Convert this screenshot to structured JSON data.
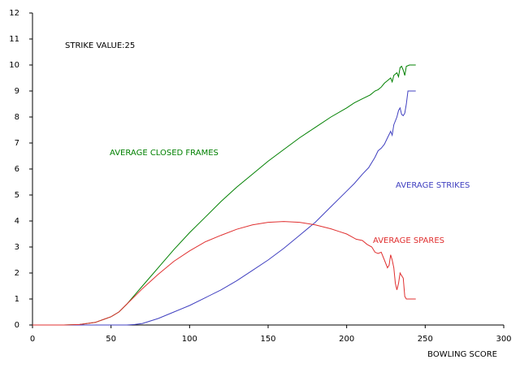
{
  "chart_data": {
    "type": "line",
    "title": "",
    "xlabel": "BOWLING SCORE",
    "ylabel": "",
    "xlim": [
      0,
      300
    ],
    "ylim": [
      0,
      12
    ],
    "x_ticks": [
      0,
      50,
      100,
      150,
      200,
      250,
      300
    ],
    "y_ticks": [
      0,
      1,
      2,
      3,
      4,
      5,
      6,
      7,
      8,
      9,
      10,
      11,
      12
    ],
    "grid": false,
    "annotation": "STRIKE VALUE:25",
    "colors": {
      "axis": "#000000",
      "background": "#ffffff"
    },
    "series": [
      {
        "name": "AVERAGE CLOSED FRAMES",
        "color": "#008000",
        "label_position": "left-middle",
        "points": [
          [
            0,
            0
          ],
          [
            20,
            0
          ],
          [
            30,
            0.02
          ],
          [
            40,
            0.1
          ],
          [
            50,
            0.32
          ],
          [
            55,
            0.5
          ],
          [
            60,
            0.8
          ],
          [
            65,
            1.15
          ],
          [
            70,
            1.5
          ],
          [
            80,
            2.2
          ],
          [
            90,
            2.9
          ],
          [
            100,
            3.55
          ],
          [
            110,
            4.15
          ],
          [
            120,
            4.75
          ],
          [
            130,
            5.3
          ],
          [
            140,
            5.8
          ],
          [
            150,
            6.3
          ],
          [
            160,
            6.75
          ],
          [
            170,
            7.2
          ],
          [
            180,
            7.6
          ],
          [
            190,
            8.0
          ],
          [
            200,
            8.35
          ],
          [
            205,
            8.55
          ],
          [
            210,
            8.7
          ],
          [
            215,
            8.85
          ],
          [
            218,
            9.0
          ],
          [
            220,
            9.05
          ],
          [
            222,
            9.15
          ],
          [
            224,
            9.3
          ],
          [
            226,
            9.4
          ],
          [
            228,
            9.5
          ],
          [
            229,
            9.35
          ],
          [
            230,
            9.6
          ],
          [
            232,
            9.7
          ],
          [
            233,
            9.55
          ],
          [
            234,
            9.9
          ],
          [
            235,
            9.95
          ],
          [
            236,
            9.8
          ],
          [
            237,
            9.6
          ],
          [
            238,
            9.95
          ],
          [
            240,
            10.0
          ],
          [
            244,
            10.0
          ]
        ]
      },
      {
        "name": "AVERAGE STRIKES",
        "color": "#4040c0",
        "label_position": "right-middle",
        "points": [
          [
            0,
            0
          ],
          [
            60,
            0
          ],
          [
            65,
            0.02
          ],
          [
            70,
            0.06
          ],
          [
            80,
            0.25
          ],
          [
            90,
            0.5
          ],
          [
            100,
            0.75
          ],
          [
            110,
            1.05
          ],
          [
            120,
            1.35
          ],
          [
            130,
            1.7
          ],
          [
            140,
            2.1
          ],
          [
            150,
            2.5
          ],
          [
            160,
            2.95
          ],
          [
            170,
            3.45
          ],
          [
            180,
            3.95
          ],
          [
            190,
            4.55
          ],
          [
            200,
            5.15
          ],
          [
            205,
            5.45
          ],
          [
            210,
            5.8
          ],
          [
            214,
            6.05
          ],
          [
            218,
            6.45
          ],
          [
            220,
            6.7
          ],
          [
            222,
            6.8
          ],
          [
            224,
            6.95
          ],
          [
            226,
            7.2
          ],
          [
            228,
            7.45
          ],
          [
            229,
            7.3
          ],
          [
            230,
            7.7
          ],
          [
            232,
            8.0
          ],
          [
            233,
            8.25
          ],
          [
            234,
            8.35
          ],
          [
            235,
            8.1
          ],
          [
            236,
            8.05
          ],
          [
            237,
            8.15
          ],
          [
            238,
            8.5
          ],
          [
            239,
            9.0
          ],
          [
            244,
            9.0
          ]
        ]
      },
      {
        "name": "AVERAGE SPARES",
        "color": "#e03030",
        "label_position": "right-lower",
        "points": [
          [
            0,
            0
          ],
          [
            20,
            0
          ],
          [
            30,
            0.02
          ],
          [
            40,
            0.1
          ],
          [
            50,
            0.32
          ],
          [
            55,
            0.5
          ],
          [
            60,
            0.8
          ],
          [
            65,
            1.1
          ],
          [
            70,
            1.4
          ],
          [
            80,
            1.95
          ],
          [
            90,
            2.45
          ],
          [
            100,
            2.85
          ],
          [
            110,
            3.2
          ],
          [
            120,
            3.45
          ],
          [
            130,
            3.68
          ],
          [
            140,
            3.85
          ],
          [
            150,
            3.95
          ],
          [
            160,
            3.98
          ],
          [
            170,
            3.95
          ],
          [
            180,
            3.85
          ],
          [
            190,
            3.7
          ],
          [
            195,
            3.6
          ],
          [
            200,
            3.5
          ],
          [
            203,
            3.4
          ],
          [
            206,
            3.3
          ],
          [
            210,
            3.25
          ],
          [
            213,
            3.1
          ],
          [
            216,
            3.0
          ],
          [
            218,
            2.8
          ],
          [
            220,
            2.75
          ],
          [
            222,
            2.8
          ],
          [
            224,
            2.5
          ],
          [
            226,
            2.2
          ],
          [
            227,
            2.3
          ],
          [
            228,
            2.7
          ],
          [
            229,
            2.5
          ],
          [
            230,
            2.2
          ],
          [
            231,
            1.6
          ],
          [
            232,
            1.35
          ],
          [
            233,
            1.6
          ],
          [
            234,
            2.0
          ],
          [
            235,
            1.9
          ],
          [
            236,
            1.8
          ],
          [
            237,
            1.1
          ],
          [
            238,
            1.0
          ],
          [
            244,
            1.0
          ]
        ]
      }
    ]
  }
}
